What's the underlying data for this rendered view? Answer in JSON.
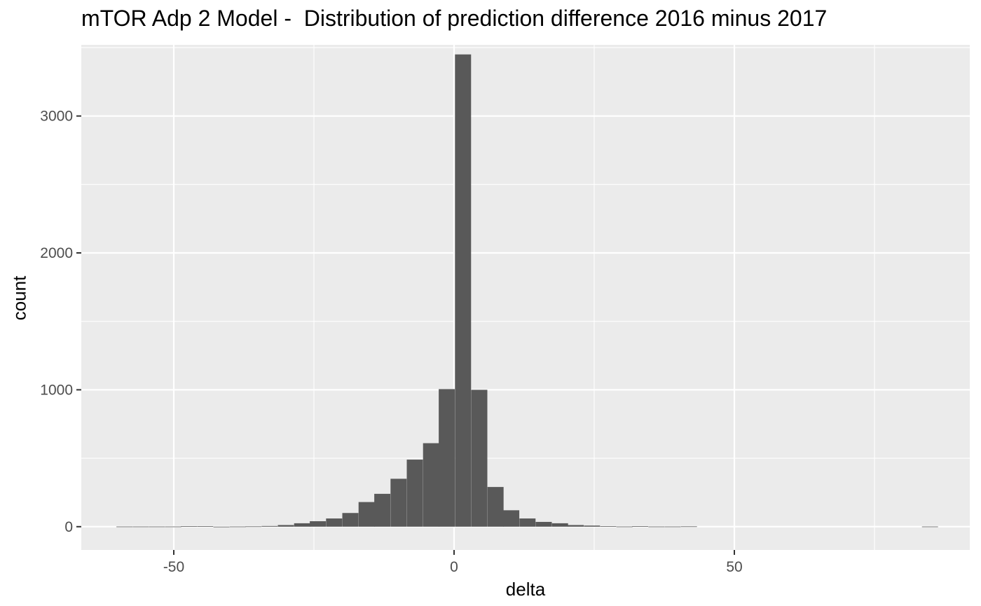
{
  "chart_data": {
    "type": "bar",
    "title": "mTOR Adp 2 Model -  Distribution of prediction difference 2016 minus 2017",
    "xlabel": "delta",
    "ylabel": "count",
    "xlim": [
      -66.5,
      92
    ],
    "ylim": [
      -170,
      3520
    ],
    "x_ticks": [
      -50,
      0,
      50
    ],
    "y_ticks": [
      0,
      1000,
      2000,
      3000
    ],
    "bin_width": 2.87,
    "bins": [
      {
        "x": -58.8,
        "count": 1
      },
      {
        "x": -55.9,
        "count": 1
      },
      {
        "x": -53.0,
        "count": 1
      },
      {
        "x": -50.1,
        "count": 1
      },
      {
        "x": -47.3,
        "count": 3
      },
      {
        "x": -44.4,
        "count": 4
      },
      {
        "x": -41.5,
        "count": 0
      },
      {
        "x": -38.6,
        "count": 1
      },
      {
        "x": -35.8,
        "count": 2
      },
      {
        "x": -32.9,
        "count": 5
      },
      {
        "x": -30.0,
        "count": 12
      },
      {
        "x": -27.1,
        "count": 25
      },
      {
        "x": -24.3,
        "count": 40
      },
      {
        "x": -21.4,
        "count": 60
      },
      {
        "x": -18.5,
        "count": 100
      },
      {
        "x": -15.6,
        "count": 180
      },
      {
        "x": -12.8,
        "count": 240
      },
      {
        "x": -9.9,
        "count": 350
      },
      {
        "x": -7.0,
        "count": 490
      },
      {
        "x": -4.1,
        "count": 610
      },
      {
        "x": -1.3,
        "count": 1005
      },
      {
        "x": 1.6,
        "count": 3450
      },
      {
        "x": 4.5,
        "count": 1000
      },
      {
        "x": 7.4,
        "count": 290
      },
      {
        "x": 10.2,
        "count": 120
      },
      {
        "x": 13.1,
        "count": 60
      },
      {
        "x": 16.0,
        "count": 35
      },
      {
        "x": 18.9,
        "count": 25
      },
      {
        "x": 21.7,
        "count": 12
      },
      {
        "x": 24.6,
        "count": 8
      },
      {
        "x": 27.5,
        "count": 4
      },
      {
        "x": 30.4,
        "count": 1
      },
      {
        "x": 33.2,
        "count": 3
      },
      {
        "x": 36.1,
        "count": 1
      },
      {
        "x": 39.0,
        "count": 1
      },
      {
        "x": 41.9,
        "count": 2
      },
      {
        "x": 84.9,
        "count": 1
      }
    ]
  }
}
